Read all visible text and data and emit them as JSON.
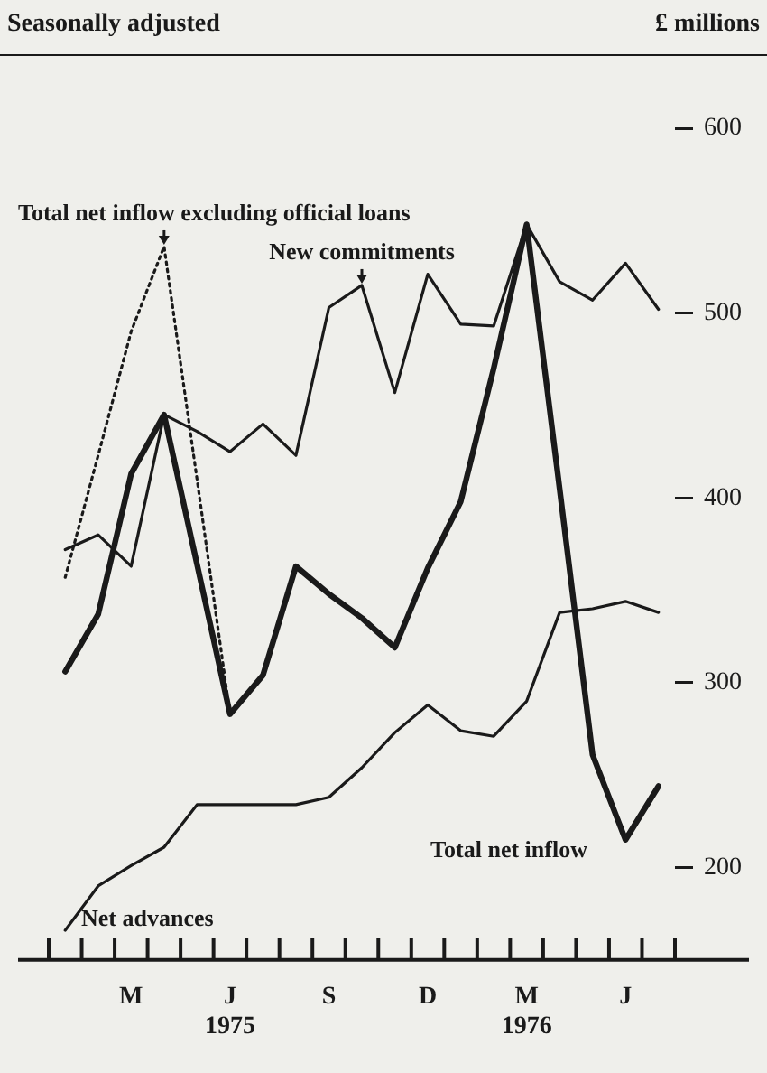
{
  "chart_data": {
    "type": "line",
    "subtitle": "Seasonally adjusted",
    "ylabel": "£ millions",
    "categories": [
      null,
      null,
      "M",
      null,
      null,
      "J\n1975",
      null,
      null,
      "S",
      null,
      null,
      "D",
      null,
      null,
      "M\n1976",
      null,
      null,
      "J",
      null
    ],
    "series": [
      {
        "name": "Total net inflow",
        "color": "#1a1a1a",
        "line_style": "solid",
        "values": [
          306,
          337,
          413,
          445,
          364,
          283,
          304,
          363,
          348,
          335,
          319,
          362,
          398,
          470,
          548,
          405,
          261,
          215,
          244
        ]
      },
      {
        "name": "Total net inflow excluding official loans",
        "color": "#1a1a1a",
        "line_style": "dotted",
        "values": [
          357,
          423,
          490,
          536,
          410,
          283,
          304,
          363,
          348,
          335,
          319,
          null,
          null,
          null,
          null,
          null,
          null,
          null,
          null
        ]
      },
      {
        "name": "New commitments",
        "color": "#1a1a1a",
        "line_style": "solid",
        "values": [
          372,
          380,
          363,
          445,
          436,
          425,
          440,
          423,
          503,
          515,
          457,
          521,
          494,
          493,
          548,
          517,
          507,
          527,
          502
        ]
      },
      {
        "name": "Net advances",
        "color": "#1a1a1a",
        "line_style": "solid",
        "values": [
          166,
          190,
          201,
          211,
          234,
          234,
          234,
          234,
          238,
          254,
          273,
          288,
          274,
          271,
          290,
          338,
          340,
          344,
          338
        ]
      }
    ],
    "ylim": [
      150,
      600
    ],
    "yticks": [
      200,
      300,
      400,
      500,
      600
    ],
    "grid": false,
    "legend": false,
    "marker": "none"
  }
}
